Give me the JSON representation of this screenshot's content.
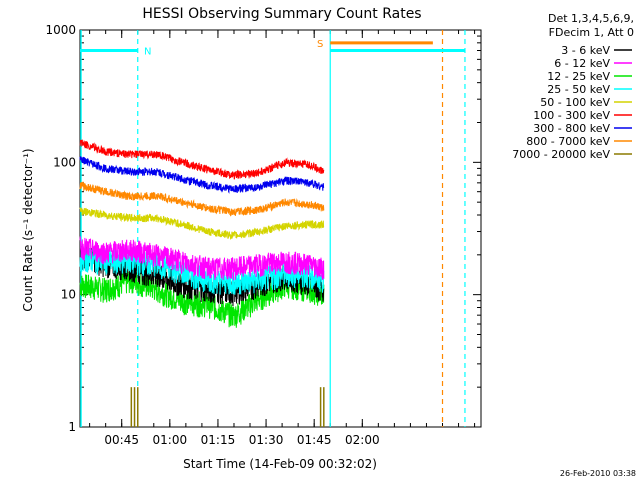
{
  "chart_data": {
    "type": "line",
    "title": "HESSI Observing Summary Count Rates",
    "xlabel": "Start Time (14-Feb-09 00:32:02)",
    "ylabel": "Count Rate (s⁻¹ detector⁻¹)",
    "ylog": true,
    "ylim": [
      1,
      1000
    ],
    "xlim": [
      "00:32",
      "02:37"
    ],
    "y_ticks": [
      {
        "value": 1,
        "label": "1"
      },
      {
        "value": 10,
        "label": "10"
      },
      {
        "value": 100,
        "label": "100"
      },
      {
        "value": 1000,
        "label": "1000"
      }
    ],
    "x_ticks": [
      {
        "value": "00:45",
        "label": "00:45"
      },
      {
        "value": "01:00",
        "label": "01:00"
      },
      {
        "value": "01:15",
        "label": "01:15"
      },
      {
        "value": "01:30",
        "label": "01:30"
      },
      {
        "value": "01:45",
        "label": "01:45"
      },
      {
        "value": "02:00",
        "label": "02:00"
      }
    ],
    "legend": {
      "placement": "right",
      "header": [
        "Det 1,3,4,5,6,9,",
        "FDecim 1, Att 0"
      ]
    },
    "x": [
      "00:32",
      "00:40",
      "00:48",
      "00:56",
      "01:04",
      "01:12",
      "01:20",
      "01:28",
      "01:36",
      "01:44",
      "01:48"
    ],
    "series": [
      {
        "name": "3 - 6 keV",
        "color": "#000000",
        "values": [
          20,
          17,
          16,
          14,
          12,
          11,
          10.5,
          12,
          14,
          12,
          11
        ]
      },
      {
        "name": "6 - 12 keV",
        "color": "#ff00ff",
        "values": [
          23,
          21,
          22,
          20,
          18,
          16,
          16,
          17,
          18,
          17,
          16
        ]
      },
      {
        "name": "12 - 25 keV",
        "color": "#00e600",
        "values": [
          12,
          11,
          13,
          11,
          9,
          8.5,
          7,
          9.5,
          12,
          11,
          10
        ]
      },
      {
        "name": "25 - 50 keV",
        "color": "#00ffff",
        "values": [
          19,
          18,
          18,
          17,
          15,
          13,
          12.5,
          13,
          14.5,
          14,
          13
        ]
      },
      {
        "name": "50 - 100 keV",
        "color": "#d4d400",
        "values": [
          43,
          40,
          38,
          38,
          34,
          30,
          28,
          30,
          33,
          34,
          34
        ]
      },
      {
        "name": "100 - 300 keV",
        "color": "#ff0000",
        "values": [
          142,
          120,
          115,
          115,
          100,
          88,
          80,
          84,
          100,
          95,
          85
        ]
      },
      {
        "name": "300 - 800 keV",
        "color": "#0000ee",
        "values": [
          105,
          90,
          85,
          85,
          75,
          67,
          63,
          65,
          73,
          70,
          65
        ]
      },
      {
        "name": "800 - 7000 keV",
        "color": "#ff8800",
        "values": [
          67,
          60,
          55,
          56,
          50,
          45,
          42,
          44,
          50,
          48,
          45
        ]
      },
      {
        "name": "7000 - 20000 keV",
        "color": "#8b7a00",
        "values": [
          1,
          1,
          1,
          1,
          1,
          1,
          1,
          1,
          1,
          1,
          1
        ]
      }
    ],
    "spike_times": [
      "00:48",
      "00:49",
      "00:50",
      "01:47",
      "01:48"
    ],
    "flags": [
      {
        "label": "N",
        "start": "00:32",
        "end": "00:50",
        "value": 700,
        "color": "#00ffff"
      },
      {
        "label": "S",
        "start": "01:50",
        "end": "02:22",
        "value": 800,
        "color": "#ff8800"
      },
      {
        "label": "",
        "start": "01:50",
        "end": "02:32",
        "value": 700,
        "color": "#00ffff"
      }
    ],
    "markers": [
      {
        "time": "00:50",
        "color": "#00ffff"
      },
      {
        "time": "01:50",
        "color": "#00ffff"
      },
      {
        "time": "02:25",
        "color": "#ff8800"
      },
      {
        "time": "02:32",
        "color": "#00ffff"
      }
    ]
  },
  "footer": {
    "timestamp": "26-Feb-2010 03:38"
  }
}
